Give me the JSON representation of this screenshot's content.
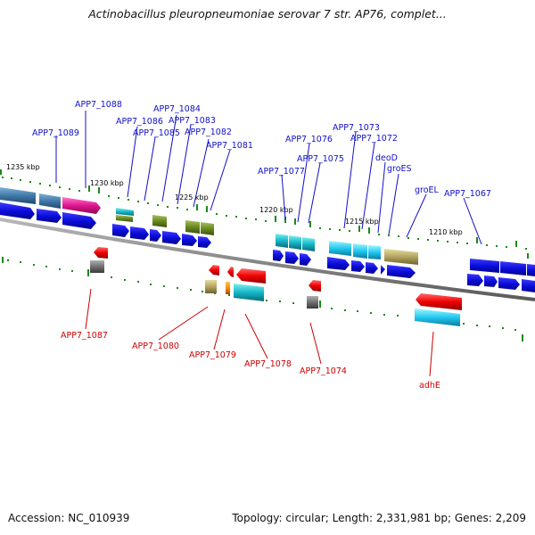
{
  "title": "Actinobacillus pleuropneumoniae serovar 7 str. AP76, complet...",
  "accession_text": "Accession: NC_010939",
  "topology_text": "Topology: circular; Length: 2,331,981 bp; Genes: 2,209",
  "colors": {
    "plus_label": "#1010c8",
    "minus_label": "#cc0000",
    "backbone": "#8c8c8c",
    "tick_dot": "#1a8a1a"
  },
  "scale_ticks": [
    "1235 kbp",
    "1230 kbp",
    "1225 kbp",
    "1220 kbp",
    "1215 kbp",
    "1210 kbp"
  ],
  "plus_labels": [
    "APP7_1088",
    "APP7_1089",
    "APP7_1086",
    "APP7_1084",
    "APP7_1083",
    "APP7_1085",
    "APP7_1082",
    "APP7_1081",
    "APP7_1073",
    "APP7_1076",
    "APP7_1072",
    "APP7_1075",
    "deoD",
    "APP7_1077",
    "groES",
    "groEL",
    "APP7_1067"
  ],
  "minus_labels": [
    "APP7_1087",
    "APP7_1080",
    "APP7_1079",
    "APP7_1078",
    "APP7_1074",
    "adhE"
  ]
}
